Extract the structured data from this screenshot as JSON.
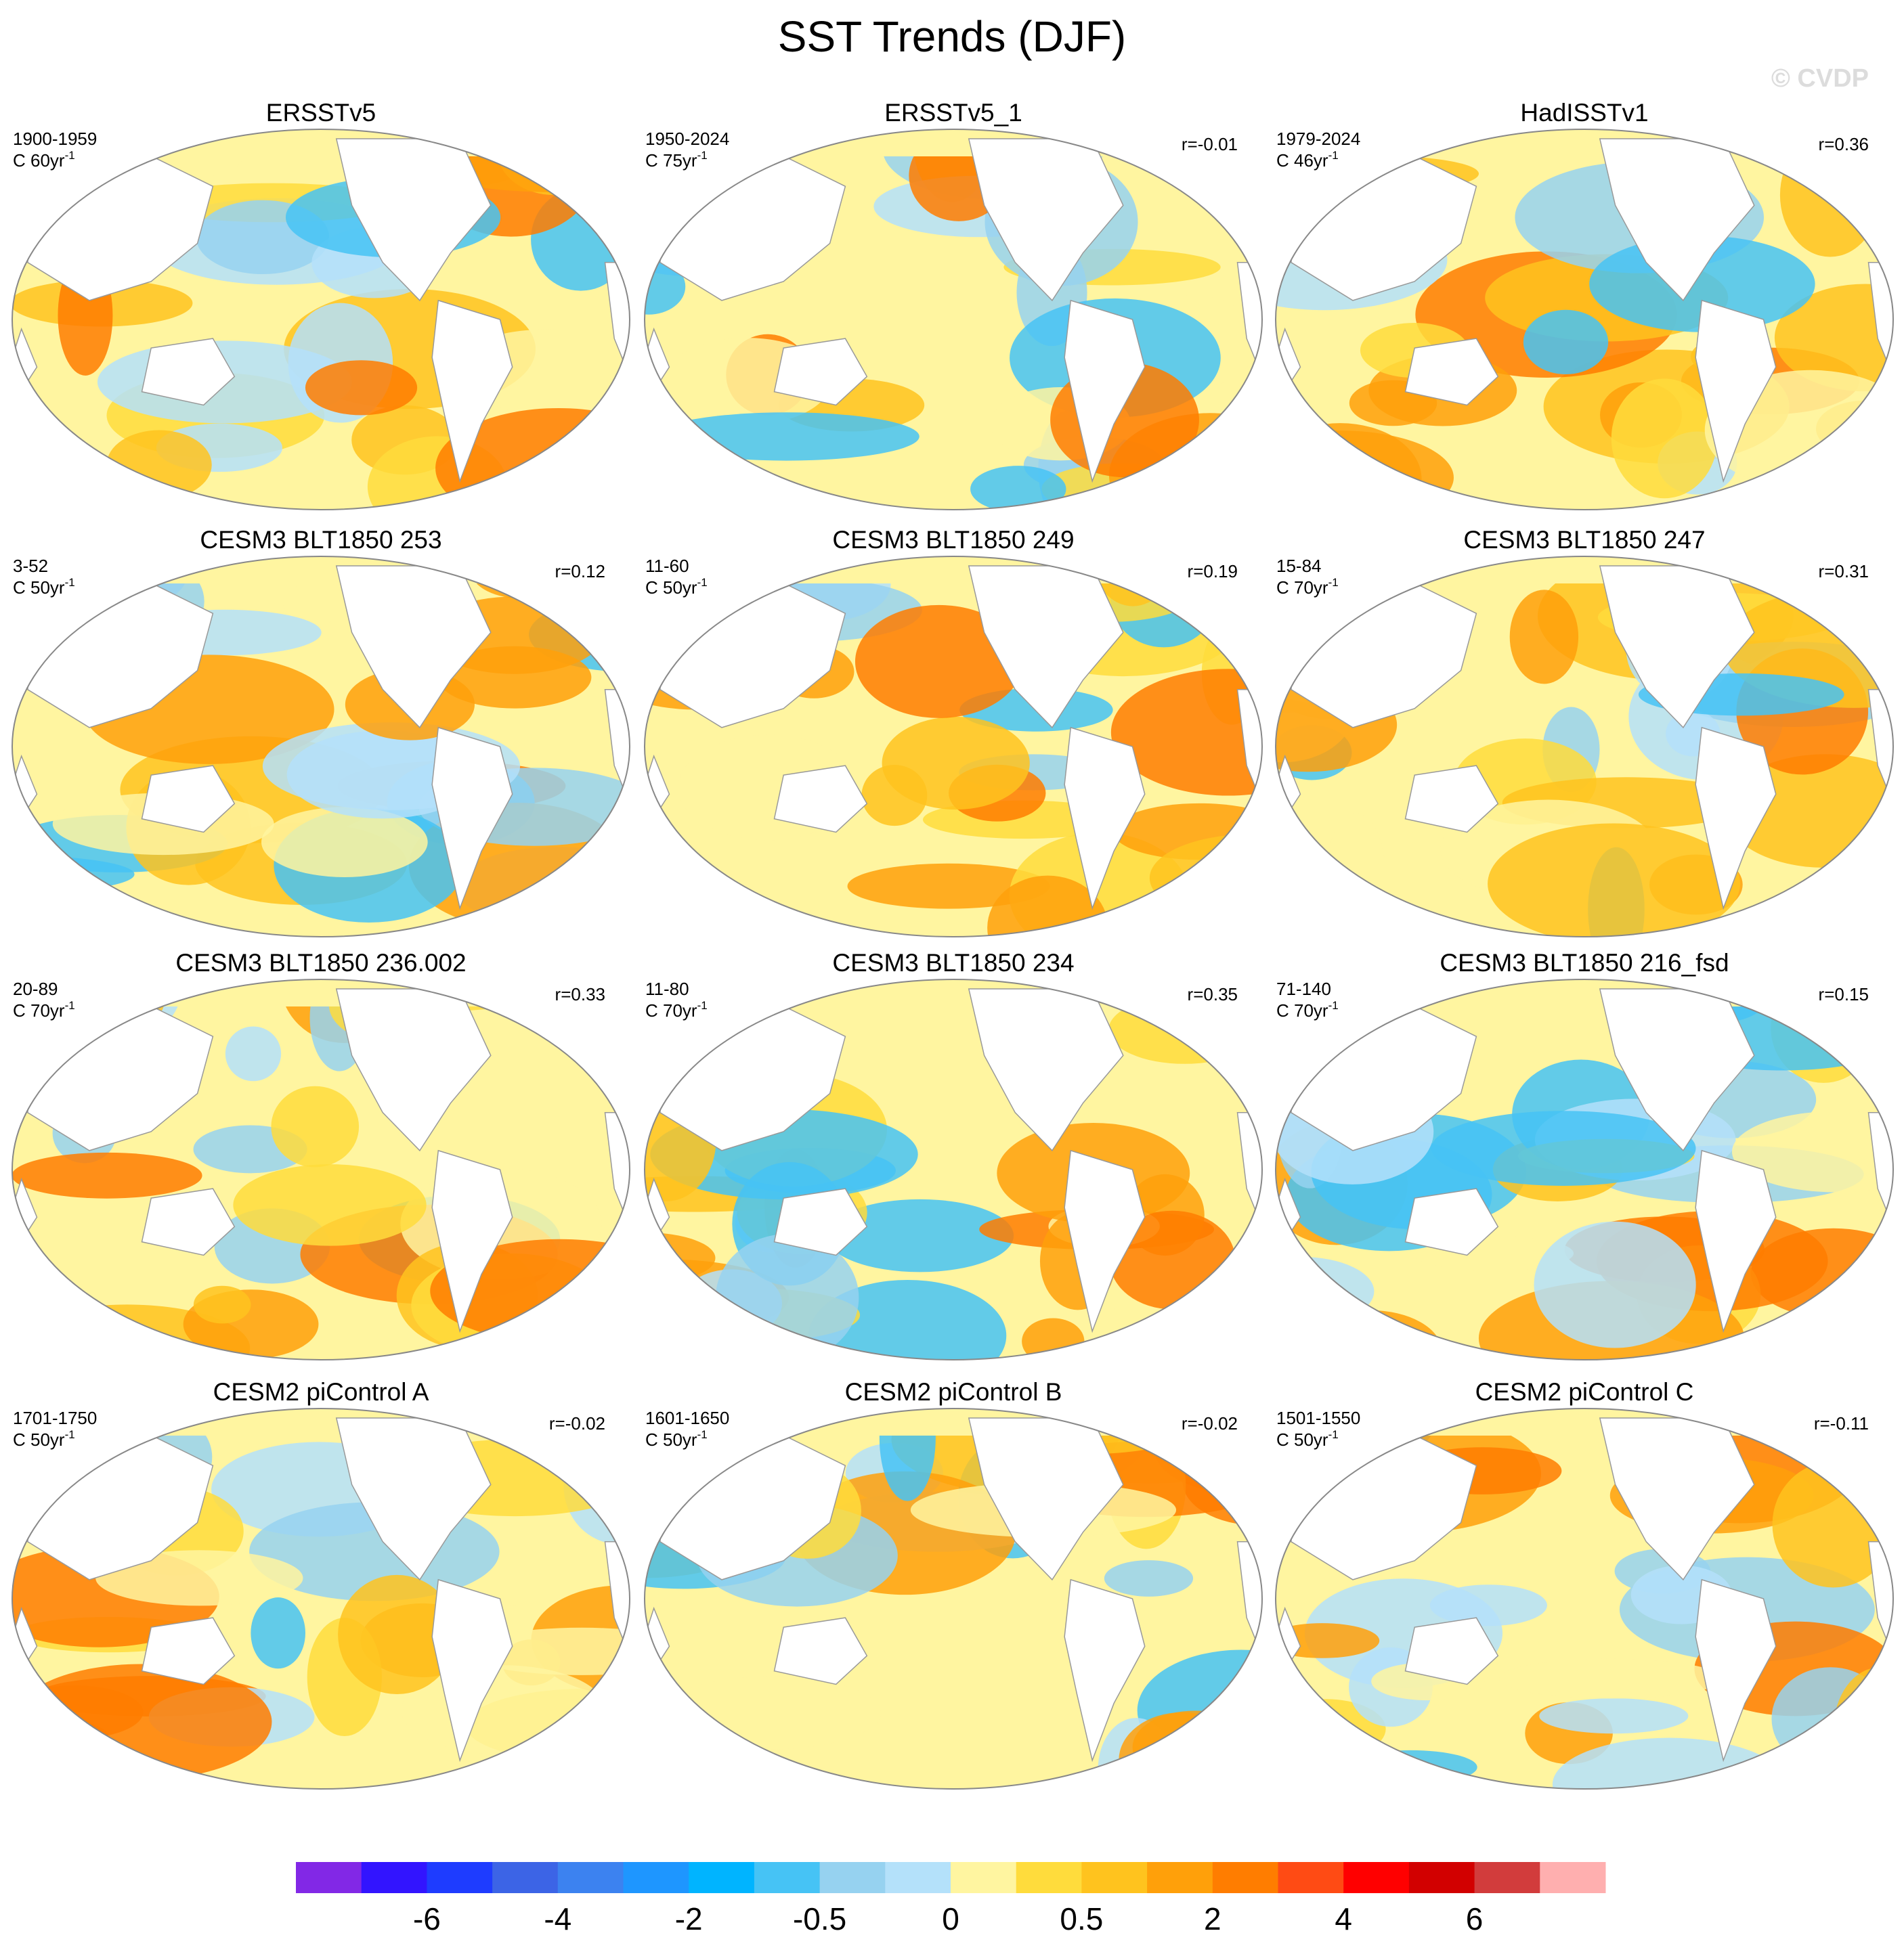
{
  "title": "SST Trends (DJF)",
  "watermark": "© CVDP",
  "panels": [
    {
      "title": "ERSSTv5",
      "period": "1900-1959",
      "units": {
        "base": "C 60yr",
        "sup": "-1"
      },
      "r": null
    },
    {
      "title": "ERSSTv5_1",
      "period": "1950-2024",
      "units": {
        "base": "C 75yr",
        "sup": "-1"
      },
      "r": "r=-0.01"
    },
    {
      "title": "HadISSTv1",
      "period": "1979-2024",
      "units": {
        "base": "C 46yr",
        "sup": "-1"
      },
      "r": "r=0.36"
    },
    {
      "title": "CESM3 BLT1850 253",
      "period": "3-52",
      "units": {
        "base": "C 50yr",
        "sup": "-1"
      },
      "r": "r=0.12"
    },
    {
      "title": "CESM3 BLT1850 249",
      "period": "11-60",
      "units": {
        "base": "C 50yr",
        "sup": "-1"
      },
      "r": "r=0.19"
    },
    {
      "title": "CESM3 BLT1850 247",
      "period": "15-84",
      "units": {
        "base": "C 70yr",
        "sup": "-1"
      },
      "r": "r=0.31"
    },
    {
      "title": "CESM3 BLT1850 236.002",
      "period": "20-89",
      "units": {
        "base": "C 70yr",
        "sup": "-1"
      },
      "r": "r=0.33"
    },
    {
      "title": "CESM3 BLT1850 234",
      "period": "11-80",
      "units": {
        "base": "C 70yr",
        "sup": "-1"
      },
      "r": "r=0.35"
    },
    {
      "title": "CESM3 BLT1850 216_fsd",
      "period": "71-140",
      "units": {
        "base": "C 70yr",
        "sup": "-1"
      },
      "r": "r=0.15"
    },
    {
      "title": "CESM2 piControl A",
      "period": "1701-1750",
      "units": {
        "base": "C 50yr",
        "sup": "-1"
      },
      "r": "r=-0.02"
    },
    {
      "title": "CESM2 piControl B",
      "period": "1601-1650",
      "units": {
        "base": "C 50yr",
        "sup": "-1"
      },
      "r": "r=-0.02"
    },
    {
      "title": "CESM2 piControl C",
      "period": "1501-1550",
      "units": {
        "base": "C 50yr",
        "sup": "-1"
      },
      "r": "r=-0.11"
    }
  ],
  "colorbar": {
    "colors": [
      "#8228e6",
      "#3214ff",
      "#1e3cff",
      "#3c64e6",
      "#3c82f0",
      "#1e96ff",
      "#00b4ff",
      "#46c3f5",
      "#96d2f0",
      "#b4e1fa",
      "#fff5a0",
      "#ffdc3c",
      "#ffc31e",
      "#ffa00a",
      "#ff7d00",
      "#ff4b14",
      "#ff0000",
      "#d20000",
      "#d23c3c",
      "#ffafaf"
    ],
    "labels": [
      -6,
      -4,
      -2,
      -0.5,
      0,
      0.5,
      2,
      4,
      6
    ]
  }
}
